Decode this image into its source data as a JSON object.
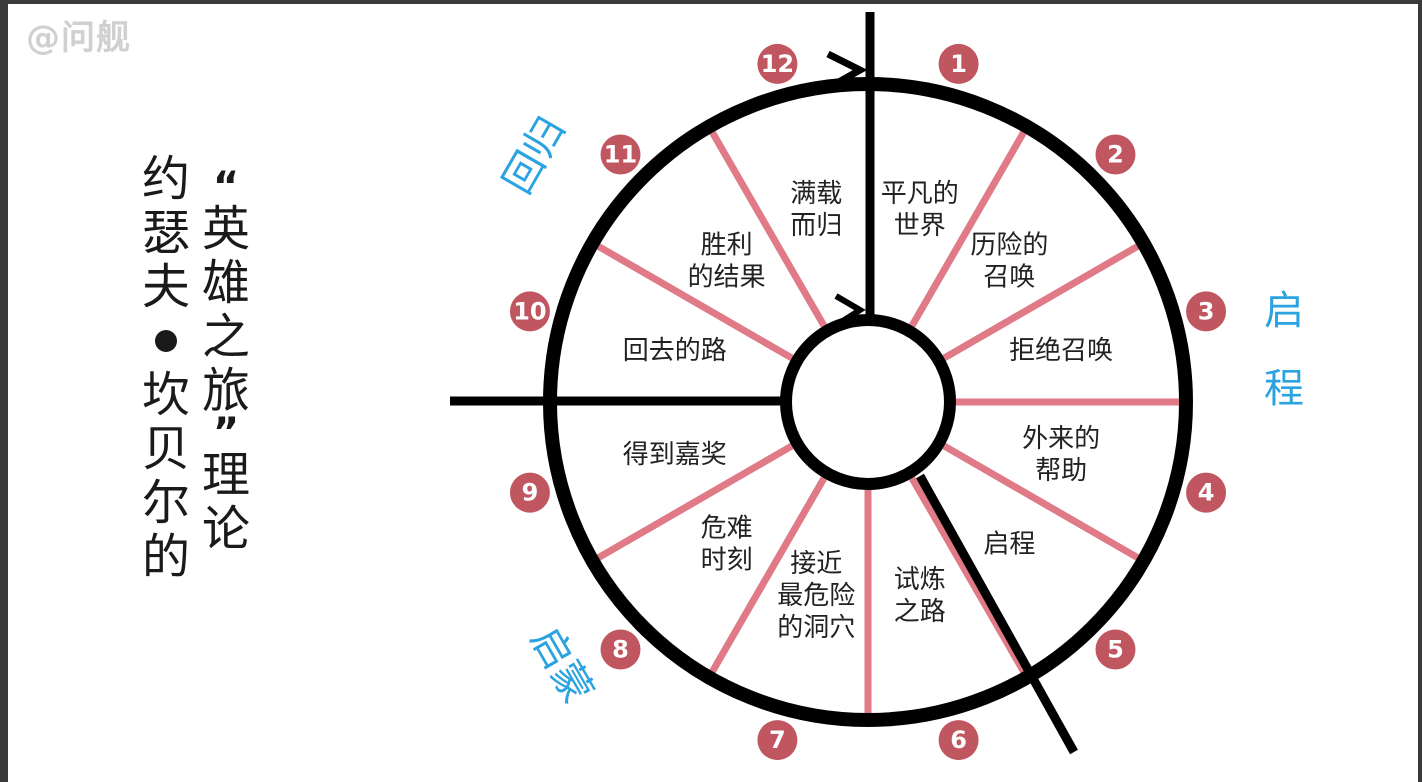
{
  "watermark": "@问舰",
  "title": {
    "col1": [
      "约",
      "瑟",
      "夫",
      "坎",
      "贝",
      "尔",
      "的"
    ],
    "col2_quote_open": "“",
    "col2": [
      "英",
      "雄",
      "之",
      "旅"
    ],
    "col2_quote_close": "”",
    "col2_tail": [
      "理",
      "论"
    ]
  },
  "phases": {
    "departure": "启程",
    "initiation": "启蒙",
    "return": "回归"
  },
  "stages": [
    {
      "num": "1",
      "lines": [
        "平凡的",
        "世界"
      ]
    },
    {
      "num": "2",
      "lines": [
        "历险的",
        "召唤"
      ]
    },
    {
      "num": "3",
      "lines": [
        "拒绝召唤"
      ]
    },
    {
      "num": "4",
      "lines": [
        "外来的",
        "帮助"
      ]
    },
    {
      "num": "5",
      "lines": [
        "启程"
      ]
    },
    {
      "num": "6",
      "lines": [
        "试炼",
        "之路"
      ]
    },
    {
      "num": "7",
      "lines": [
        "接近",
        "最危险",
        "的洞穴"
      ]
    },
    {
      "num": "8",
      "lines": [
        "危难",
        "时刻"
      ]
    },
    {
      "num": "9",
      "lines": [
        "得到嘉奖"
      ]
    },
    {
      "num": "10",
      "lines": [
        "回去的路"
      ]
    },
    {
      "num": "11",
      "lines": [
        "胜利",
        "的结果"
      ]
    },
    {
      "num": "12",
      "lines": [
        "满载",
        "而归"
      ]
    }
  ],
  "colors": {
    "spoke": "#e07a86",
    "badge": "#c0565f",
    "phase": "#2aa3e0",
    "ring": "#000000"
  }
}
